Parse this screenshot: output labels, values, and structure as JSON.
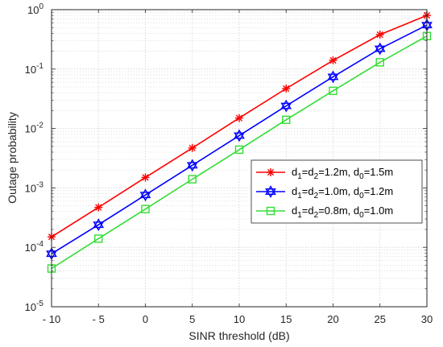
{
  "chart_data": {
    "type": "line",
    "xlabel": "SINR threshold (dB)",
    "ylabel": "Outage probability",
    "x": [
      -10,
      -5,
      0,
      5,
      10,
      15,
      20,
      25,
      30
    ],
    "xlim": [
      -10,
      30
    ],
    "ylim": [
      1e-05,
      1
    ],
    "yscale": "log",
    "grid": true,
    "legend_position": "center-right",
    "x_ticks": [
      {
        "value": -10,
        "label": "- 10"
      },
      {
        "value": -5,
        "label": "- 5"
      },
      {
        "value": 0,
        "label": "0"
      },
      {
        "value": 5,
        "label": "5"
      },
      {
        "value": 10,
        "label": "10"
      },
      {
        "value": 15,
        "label": "15"
      },
      {
        "value": 20,
        "label": "20"
      },
      {
        "value": 25,
        "label": "25"
      },
      {
        "value": 30,
        "label": "30"
      }
    ],
    "y_ticks": [
      {
        "value": 1e-05,
        "base": "10",
        "exp": "-5"
      },
      {
        "value": 0.0001,
        "base": "10",
        "exp": "-4"
      },
      {
        "value": 0.001,
        "base": "10",
        "exp": "-3"
      },
      {
        "value": 0.01,
        "base": "10",
        "exp": "-2"
      },
      {
        "value": 0.1,
        "base": "10",
        "exp": "-1"
      },
      {
        "value": 1,
        "base": "10",
        "exp": "0"
      }
    ],
    "series": [
      {
        "name": "d1=d2=1.2m, d0=1.5m",
        "name_parts": [
          [
            "d",
            ""
          ],
          [
            "1",
            "sub"
          ],
          [
            "=d",
            ""
          ],
          [
            "2",
            "sub"
          ],
          [
            "=1.2m, d",
            ""
          ],
          [
            "0",
            "sub"
          ],
          [
            "=1.5m",
            ""
          ]
        ],
        "color": "#ff0000",
        "marker": "asterisk",
        "values": [
          0.00015,
          0.00047,
          0.0015,
          0.0047,
          0.015,
          0.047,
          0.14,
          0.38,
          0.8
        ]
      },
      {
        "name": "d1=d2=1.0m, d0=1.2m",
        "name_parts": [
          [
            "d",
            ""
          ],
          [
            "1",
            "sub"
          ],
          [
            "=d",
            ""
          ],
          [
            "2",
            "sub"
          ],
          [
            "=1.0m, d",
            ""
          ],
          [
            "0",
            "sub"
          ],
          [
            "=1.2m",
            ""
          ]
        ],
        "color": "#0000ff",
        "marker": "hexagram",
        "values": [
          7.8e-05,
          0.00024,
          0.00076,
          0.0024,
          0.0076,
          0.024,
          0.074,
          0.22,
          0.55
        ]
      },
      {
        "name": "d1=d2=0.8m, d0=1.0m",
        "name_parts": [
          [
            "d",
            ""
          ],
          [
            "1",
            "sub"
          ],
          [
            "=d",
            ""
          ],
          [
            "2",
            "sub"
          ],
          [
            "=0.8m, d",
            ""
          ],
          [
            "0",
            "sub"
          ],
          [
            "=1.0m",
            ""
          ]
        ],
        "color": "#33dd33",
        "marker": "square",
        "values": [
          4.4e-05,
          0.00014,
          0.00044,
          0.0014,
          0.0044,
          0.014,
          0.043,
          0.13,
          0.36
        ]
      }
    ]
  }
}
